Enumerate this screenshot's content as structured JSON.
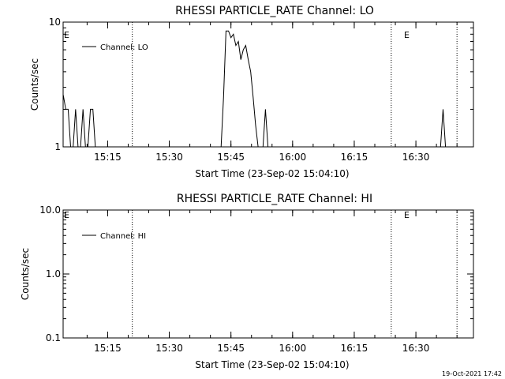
{
  "footer_timestamp": "19-Oct-2021 17:42",
  "chart_data": [
    {
      "type": "line",
      "title": "RHESSI PARTICLE_RATE Channel: LO",
      "xlabel": "Start Time (23-Sep-02 15:04:10)",
      "ylabel": "Counts/sec",
      "yscale": "log",
      "ylim": [
        1,
        10
      ],
      "xlim_minutes": [
        "15:04:10",
        "16:44:00"
      ],
      "y_tick_labels": [
        "1",
        "10"
      ],
      "x_tick_labels": [
        "15:15",
        "15:30",
        "15:45",
        "16:00",
        "16:15",
        "16:30"
      ],
      "legend": "Channel: LO",
      "legend_position": "top-left",
      "event_markers": [
        "E",
        "E"
      ],
      "series": [
        {
          "name": "Channel: LO",
          "points": [
            [
              15.07,
              2.6
            ],
            [
              15.08,
              2.0
            ],
            [
              15.09,
              2.0
            ],
            [
              15.1,
              1.0
            ],
            [
              15.11,
              1.0
            ],
            [
              15.12,
              2.0
            ],
            [
              15.13,
              1.0
            ],
            [
              15.14,
              1.0
            ],
            [
              15.15,
              2.0
            ],
            [
              15.16,
              1.0
            ],
            [
              15.17,
              1.0
            ],
            [
              15.18,
              2.0
            ],
            [
              15.19,
              2.0
            ],
            [
              15.2,
              1.0
            ],
            [
              15.71,
              1.0
            ],
            [
              15.72,
              2.5
            ],
            [
              15.73,
              8.5
            ],
            [
              15.74,
              8.5
            ],
            [
              15.75,
              7.5
            ],
            [
              15.76,
              8.0
            ],
            [
              15.77,
              6.5
            ],
            [
              15.78,
              7.0
            ],
            [
              15.79,
              5.0
            ],
            [
              15.8,
              6.0
            ],
            [
              15.81,
              6.5
            ],
            [
              15.82,
              5.0
            ],
            [
              15.83,
              4.0
            ],
            [
              15.84,
              2.5
            ],
            [
              15.85,
              1.5
            ],
            [
              15.86,
              1.0
            ],
            [
              15.88,
              1.0
            ],
            [
              15.89,
              2.0
            ],
            [
              15.9,
              1.0
            ],
            [
              16.6,
              1.0
            ],
            [
              16.61,
              2.0
            ],
            [
              16.62,
              1.0
            ]
          ]
        }
      ],
      "vertical_lines": [
        "15:21",
        "16:24",
        "16:40"
      ]
    },
    {
      "type": "line",
      "title": "RHESSI PARTICLE_RATE Channel: HI",
      "xlabel": "Start Time (23-Sep-02 15:04:10)",
      "ylabel": "Counts/sec",
      "yscale": "log",
      "ylim": [
        0.1,
        10
      ],
      "y_tick_labels": [
        "0.1",
        "1.0",
        "10.0"
      ],
      "x_tick_labels": [
        "15:15",
        "15:30",
        "15:45",
        "16:00",
        "16:15",
        "16:30"
      ],
      "legend": "Channel: HI",
      "legend_position": "top-left",
      "event_markers": [
        "E",
        "E"
      ],
      "series": [],
      "vertical_lines": [
        "15:21",
        "16:24",
        "16:40"
      ]
    }
  ]
}
